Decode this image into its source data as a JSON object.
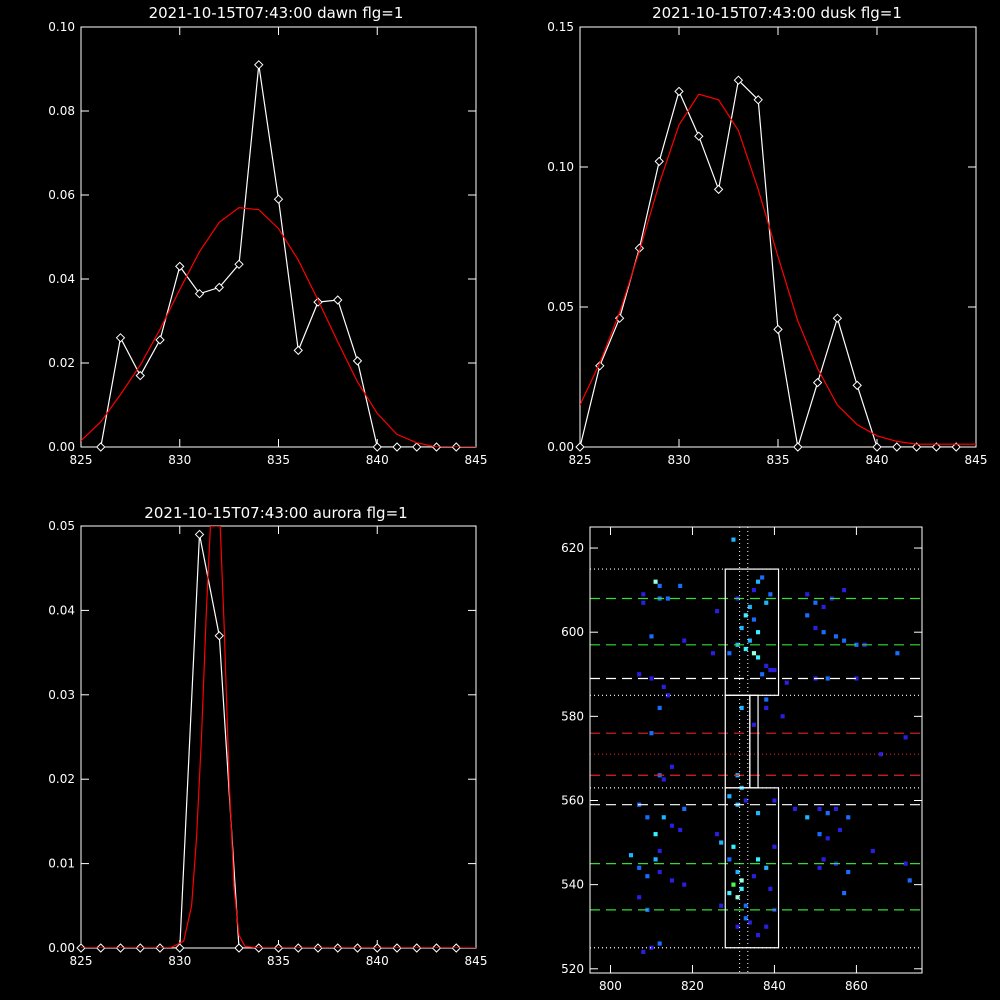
{
  "chart_data": [
    {
      "type": "line",
      "title": "2021-10-15T07:43:00 dawn flg=1",
      "xlim": [
        825,
        845
      ],
      "ylim": [
        0,
        0.1
      ],
      "xticks": [
        "825",
        "830",
        "835",
        "840",
        "845"
      ],
      "yticks": [
        "0.00",
        "0.02",
        "0.04",
        "0.06",
        "0.08",
        "0.10"
      ],
      "series": [
        {
          "kind": "data",
          "color": "#ffffff",
          "marker": "diamond",
          "x": [
            826,
            827,
            828,
            829,
            830,
            831,
            832,
            833,
            834,
            835,
            836,
            837,
            838,
            839,
            840,
            841,
            842,
            843,
            844
          ],
          "y": [
            0.0,
            0.026,
            0.017,
            0.0255,
            0.043,
            0.0365,
            0.038,
            0.0435,
            0.091,
            0.059,
            0.023,
            0.0345,
            0.035,
            0.0205,
            0.0,
            0.0,
            0.0,
            0.0,
            0.0
          ]
        },
        {
          "kind": "fit",
          "color": "#ff0000",
          "x": [
            825,
            826,
            827,
            828,
            829,
            830,
            831,
            832,
            833,
            834,
            835,
            836,
            837,
            838,
            839,
            840,
            841,
            842,
            843,
            844,
            845
          ],
          "y": [
            0.0015,
            0.006,
            0.0125,
            0.0195,
            0.028,
            0.0375,
            0.0465,
            0.0535,
            0.057,
            0.0565,
            0.052,
            0.0445,
            0.035,
            0.025,
            0.0155,
            0.008,
            0.003,
            0.001,
            0.0,
            0.0,
            0.0
          ]
        }
      ]
    },
    {
      "type": "line",
      "title": "2021-10-15T07:43:00 dusk flg=1",
      "xlim": [
        825,
        845
      ],
      "ylim": [
        0,
        0.15
      ],
      "xticks": [
        "825",
        "830",
        "835",
        "840",
        "845"
      ],
      "yticks": [
        "0.00",
        "0.05",
        "0.10",
        "0.15"
      ],
      "series": [
        {
          "kind": "data",
          "color": "#ffffff",
          "marker": "diamond",
          "x": [
            825,
            826,
            827,
            828,
            829,
            830,
            831,
            832,
            833,
            834,
            835,
            836,
            837,
            838,
            839,
            840,
            841,
            842,
            843,
            844
          ],
          "y": [
            0.0,
            0.029,
            0.046,
            0.071,
            0.102,
            0.127,
            0.111,
            0.092,
            0.131,
            0.124,
            0.042,
            0.0,
            0.023,
            0.046,
            0.022,
            0.0,
            0.0,
            0.0,
            0.0,
            0.0
          ]
        },
        {
          "kind": "fit",
          "color": "#ff0000",
          "x": [
            825,
            826,
            827,
            828,
            829,
            830,
            831,
            832,
            833,
            834,
            835,
            836,
            837,
            838,
            839,
            840,
            841,
            842,
            843,
            844,
            845
          ],
          "y": [
            0.015,
            0.03,
            0.048,
            0.07,
            0.094,
            0.115,
            0.126,
            0.124,
            0.113,
            0.092,
            0.068,
            0.045,
            0.028,
            0.015,
            0.008,
            0.004,
            0.002,
            0.001,
            0.001,
            0.001,
            0.001
          ]
        }
      ]
    },
    {
      "type": "line",
      "title": "2021-10-15T07:43:00 aurora flg=1",
      "xlim": [
        825,
        845
      ],
      "ylim": [
        0,
        0.05
      ],
      "xticks": [
        "825",
        "830",
        "835",
        "840",
        "845"
      ],
      "yticks": [
        "0.00",
        "0.01",
        "0.02",
        "0.03",
        "0.04",
        "0.05"
      ],
      "series": [
        {
          "kind": "data",
          "color": "#ffffff",
          "marker": "diamond",
          "x": [
            825,
            826,
            827,
            828,
            829,
            830,
            831,
            832,
            833,
            834,
            835,
            836,
            837,
            838,
            839,
            840,
            841,
            842,
            843,
            844
          ],
          "y": [
            0.0,
            0.0,
            0.0,
            0.0,
            0.0,
            0.0,
            0.049,
            0.037,
            0.0,
            0.0,
            0.0,
            0.0,
            0.0,
            0.0,
            0.0,
            0.0,
            0.0,
            0.0,
            0.0,
            0.0
          ]
        },
        {
          "kind": "fit",
          "color": "#ff0000",
          "x": [
            825,
            829.5,
            830.2,
            830.6,
            830.85,
            831.1,
            831.35,
            831.55,
            831.75,
            831.9,
            832.05,
            832.25,
            832.5,
            832.75,
            833.0,
            833.3,
            834,
            845
          ],
          "y": [
            0.0,
            0.0,
            0.0008,
            0.005,
            0.013,
            0.025,
            0.04,
            0.05,
            0.05,
            0.05,
            0.05,
            0.038,
            0.02,
            0.007,
            0.0015,
            0.0002,
            0.0,
            0.0
          ]
        }
      ]
    },
    {
      "type": "heatmap",
      "xlim": [
        795,
        876
      ],
      "ylim": [
        519,
        625
      ],
      "xticks": [
        "800",
        "820",
        "840",
        "860"
      ],
      "yticks": [
        "520",
        "540",
        "560",
        "580",
        "600",
        "620"
      ],
      "hlines": [
        {
          "y": 615,
          "color": "#ffffff",
          "style": "dotted"
        },
        {
          "y": 608,
          "color": "#33dd33",
          "style": "dashed"
        },
        {
          "y": 597,
          "color": "#33dd33",
          "style": "dashed"
        },
        {
          "y": 589,
          "color": "#ffffff",
          "style": "dashed"
        },
        {
          "y": 585,
          "color": "#ffffff",
          "style": "dotted"
        },
        {
          "y": 576,
          "color": "#dd2222",
          "style": "dashed"
        },
        {
          "y": 571,
          "color": "#dd2222",
          "style": "dotted"
        },
        {
          "y": 566,
          "color": "#dd2222",
          "style": "dashed"
        },
        {
          "y": 563,
          "color": "#ffffff",
          "style": "dotted"
        },
        {
          "y": 559,
          "color": "#ffffff",
          "style": "dashed"
        },
        {
          "y": 545,
          "color": "#33dd33",
          "style": "dashed"
        },
        {
          "y": 534,
          "color": "#33dd33",
          "style": "dashed"
        },
        {
          "y": 525,
          "color": "#ffffff",
          "style": "dotted"
        }
      ],
      "vlines": [
        {
          "x": 831.5,
          "color": "#ffffff",
          "style": "dotted"
        },
        {
          "x": 833.5,
          "color": "#ffffff",
          "style": "dotted"
        }
      ],
      "boxes": [
        {
          "x0": 828,
          "x1": 841,
          "y0": 585,
          "y1": 615
        },
        {
          "x0": 828,
          "x1": 834,
          "y0": 563,
          "y1": 585
        },
        {
          "x0": 834,
          "x1": 836,
          "y0": 563,
          "y1": 585
        },
        {
          "x0": 828,
          "x1": 841,
          "y0": 525,
          "y1": 563
        }
      ],
      "points": [
        [
          830,
          622,
          2
        ],
        [
          811,
          612,
          4
        ],
        [
          812,
          611,
          1
        ],
        [
          817,
          611,
          1
        ],
        [
          808,
          609,
          0
        ],
        [
          812,
          608,
          1
        ],
        [
          814,
          608,
          1
        ],
        [
          808,
          607,
          0
        ],
        [
          826,
          605,
          0
        ],
        [
          835,
          610,
          0
        ],
        [
          836,
          612,
          2
        ],
        [
          837,
          613,
          1
        ],
        [
          831,
          608,
          0
        ],
        [
          834,
          606,
          2
        ],
        [
          833,
          604,
          3
        ],
        [
          835,
          603,
          1
        ],
        [
          832,
          601,
          2
        ],
        [
          836,
          600,
          3
        ],
        [
          838,
          607,
          2
        ],
        [
          839,
          609,
          1
        ],
        [
          848,
          609,
          0
        ],
        [
          850,
          607,
          1
        ],
        [
          852,
          606,
          0
        ],
        [
          854,
          608,
          0
        ],
        [
          857,
          610,
          0
        ],
        [
          848,
          604,
          1
        ],
        [
          850,
          601,
          0
        ],
        [
          852,
          600,
          1
        ],
        [
          855,
          599,
          1
        ],
        [
          857,
          598,
          1
        ],
        [
          860,
          597,
          1
        ],
        [
          862,
          597,
          0
        ],
        [
          810,
          599,
          1
        ],
        [
          818,
          598,
          0
        ],
        [
          825,
          595,
          0
        ],
        [
          829,
          595,
          1
        ],
        [
          831,
          597,
          2
        ],
        [
          833,
          596,
          3
        ],
        [
          835,
          595,
          4
        ],
        [
          836,
          594,
          3
        ],
        [
          834,
          598,
          2
        ],
        [
          838,
          592,
          0
        ],
        [
          839,
          591,
          0
        ],
        [
          840,
          591,
          0
        ],
        [
          837,
          590,
          1
        ],
        [
          843,
          588,
          0
        ],
        [
          850,
          589,
          0
        ],
        [
          853,
          589,
          1
        ],
        [
          860,
          589,
          0
        ],
        [
          870,
          595,
          1
        ],
        [
          807,
          590,
          0
        ],
        [
          810,
          589,
          0
        ],
        [
          813,
          587,
          0
        ],
        [
          814,
          585,
          0
        ],
        [
          812,
          582,
          1
        ],
        [
          832,
          582,
          2
        ],
        [
          838,
          584,
          1
        ],
        [
          838,
          582,
          0
        ],
        [
          842,
          580,
          0
        ],
        [
          835,
          578,
          0
        ],
        [
          810,
          576,
          1
        ],
        [
          872,
          575,
          0
        ],
        [
          866,
          571,
          0
        ],
        [
          812,
          566,
          1
        ],
        [
          813,
          565,
          0
        ],
        [
          815,
          568,
          0
        ],
        [
          831,
          566,
          2
        ],
        [
          832,
          563,
          2
        ],
        [
          807,
          559,
          1
        ],
        [
          809,
          556,
          1
        ],
        [
          811,
          552,
          3
        ],
        [
          813,
          556,
          2
        ],
        [
          815,
          554,
          0
        ],
        [
          817,
          553,
          0
        ],
        [
          818,
          558,
          1
        ],
        [
          829,
          561,
          2
        ],
        [
          831,
          559,
          2
        ],
        [
          833,
          560,
          0
        ],
        [
          836,
          557,
          2
        ],
        [
          840,
          560,
          0
        ],
        [
          845,
          558,
          0
        ],
        [
          848,
          556,
          2
        ],
        [
          851,
          558,
          0
        ],
        [
          853,
          557,
          1
        ],
        [
          855,
          558,
          0
        ],
        [
          851,
          552,
          1
        ],
        [
          853,
          551,
          0
        ],
        [
          856,
          553,
          0
        ],
        [
          858,
          556,
          1
        ],
        [
          826,
          552,
          0
        ],
        [
          827,
          550,
          2
        ],
        [
          829,
          546,
          1
        ],
        [
          830,
          549,
          3
        ],
        [
          831,
          543,
          2
        ],
        [
          832,
          541,
          4
        ],
        [
          830,
          540,
          5
        ],
        [
          829,
          538,
          3
        ],
        [
          831,
          537,
          4
        ],
        [
          832,
          539,
          3
        ],
        [
          833,
          535,
          1
        ],
        [
          835,
          542,
          0
        ],
        [
          836,
          546,
          3
        ],
        [
          838,
          544,
          2
        ],
        [
          840,
          549,
          0
        ],
        [
          852,
          546,
          0
        ],
        [
          855,
          545,
          0
        ],
        [
          858,
          543,
          1
        ],
        [
          864,
          548,
          0
        ],
        [
          872,
          545,
          0
        ],
        [
          873,
          541,
          1
        ],
        [
          805,
          547,
          2
        ],
        [
          807,
          544,
          1
        ],
        [
          809,
          542,
          1
        ],
        [
          811,
          546,
          2
        ],
        [
          812,
          548,
          0
        ],
        [
          815,
          541,
          0
        ],
        [
          818,
          540,
          0
        ],
        [
          807,
          537,
          0
        ],
        [
          812,
          543,
          0
        ],
        [
          809,
          534,
          1
        ],
        [
          810,
          525,
          0
        ],
        [
          812,
          526,
          1
        ],
        [
          834,
          531,
          0
        ],
        [
          836,
          528,
          0
        ],
        [
          851,
          544,
          0
        ],
        [
          857,
          538,
          1
        ],
        [
          839,
          539,
          0
        ],
        [
          840,
          534,
          0
        ],
        [
          838,
          530,
          0
        ],
        [
          827,
          535,
          0
        ],
        [
          833,
          532,
          1
        ],
        [
          831,
          530,
          0
        ],
        [
          808,
          524,
          0
        ]
      ]
    }
  ]
}
